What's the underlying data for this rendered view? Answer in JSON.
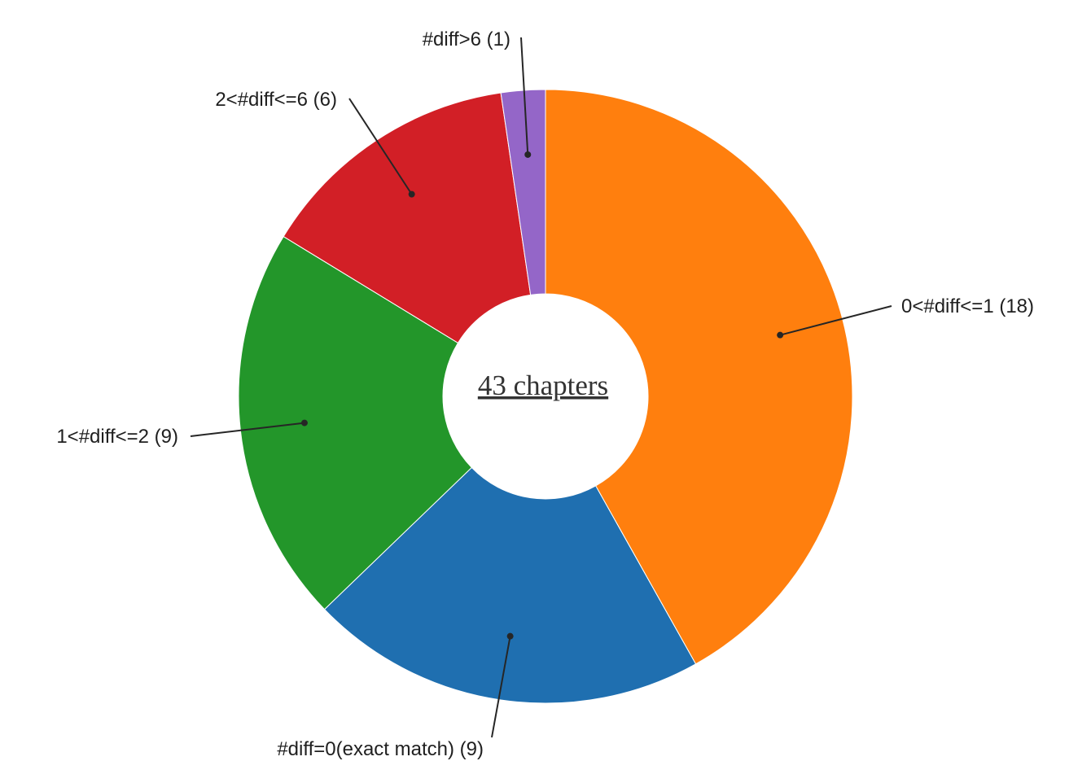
{
  "chart_data": {
    "type": "pie",
    "center_label": "43 chapters",
    "slices": [
      {
        "label": "0<#diff<=1 (18)",
        "value": 18,
        "color": "#ff7f0e"
      },
      {
        "label": "#diff=0(exact match) (9)",
        "value": 9,
        "color": "#1f6fb0"
      },
      {
        "label": "1<#diff<=2 (9)",
        "value": 9,
        "color": "#23962a"
      },
      {
        "label": "2<#diff<=6 (6)",
        "value": 6,
        "color": "#d21f26"
      },
      {
        "label": "#diff>6 (1)",
        "value": 1,
        "color": "#9466c8"
      }
    ]
  }
}
